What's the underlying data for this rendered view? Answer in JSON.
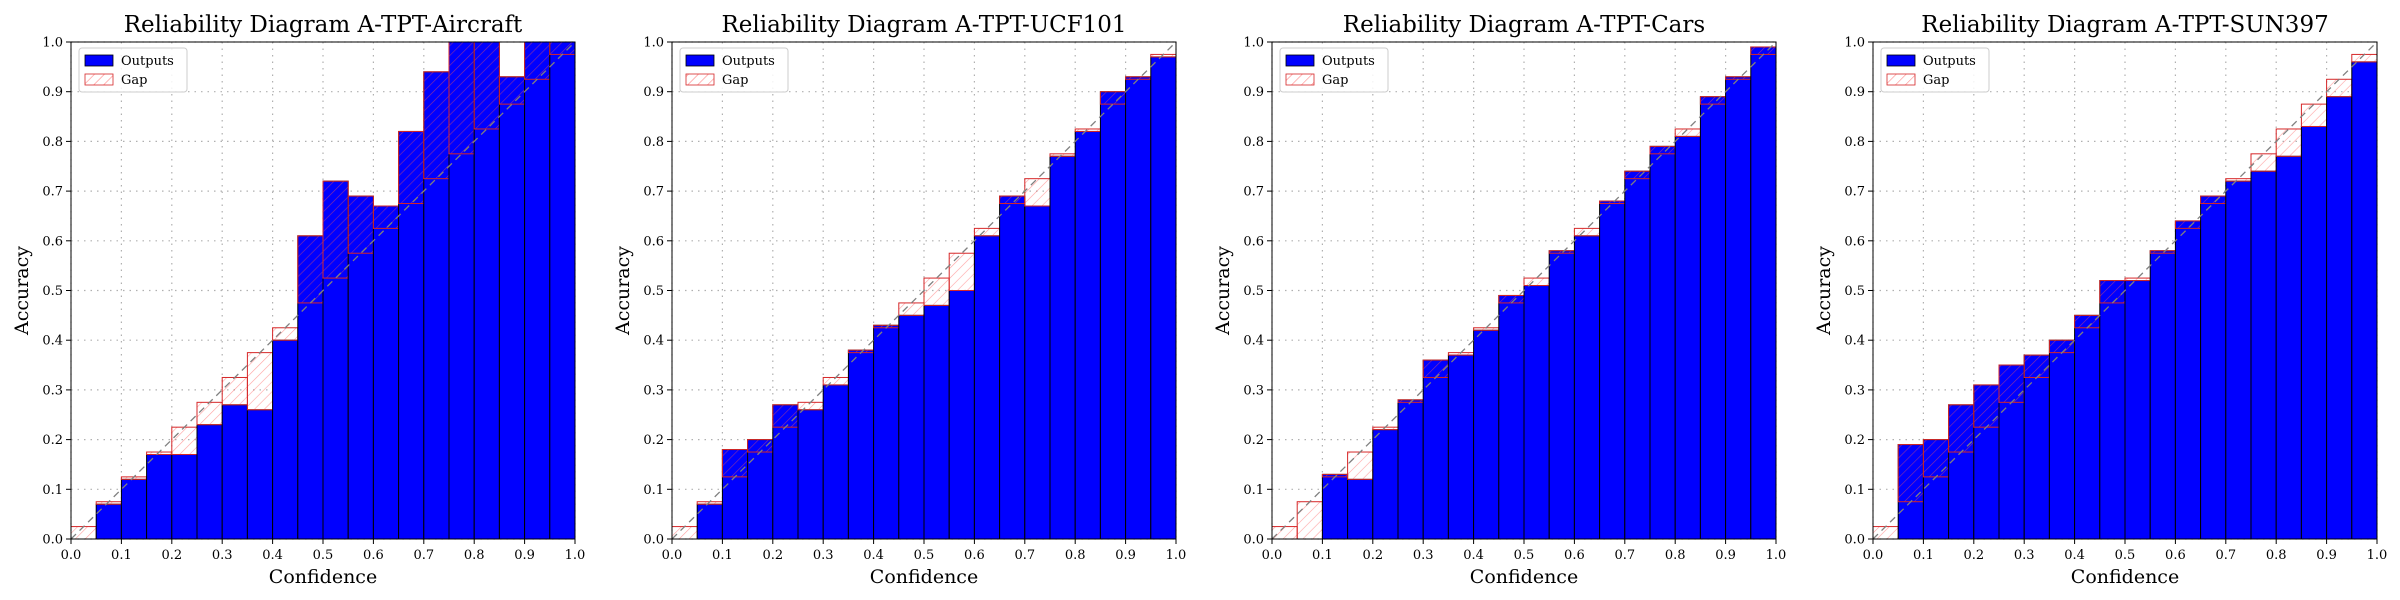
{
  "legend": {
    "outputs": "Outputs",
    "gap": "Gap"
  },
  "colors": {
    "outputs_fill": "#0000ff",
    "gap_hatch": "#ff5555",
    "bar_edge": "#000000",
    "gap_edge": "#d62728",
    "diagonal": "#808080",
    "grid": "#b0b0b0"
  },
  "chart_data": [
    {
      "type": "bar",
      "title": "Reliability Diagram A-TPT-Aircraft",
      "xlabel": "Confidence",
      "ylabel": "Accuracy",
      "xlim": [
        0,
        1
      ],
      "ylim": [
        0,
        1
      ],
      "xticks": [
        "0.0",
        "0.1",
        "0.2",
        "0.3",
        "0.4",
        "0.5",
        "0.6",
        "0.7",
        "0.8",
        "0.9",
        "1.0"
      ],
      "yticks": [
        "0.0",
        "0.1",
        "0.2",
        "0.3",
        "0.4",
        "0.5",
        "0.6",
        "0.7",
        "0.8",
        "0.9",
        "1.0"
      ],
      "bin_width": 0.05,
      "confidence": [
        0.025,
        0.075,
        0.125,
        0.175,
        0.225,
        0.275,
        0.325,
        0.375,
        0.425,
        0.475,
        0.525,
        0.575,
        0.625,
        0.675,
        0.725,
        0.775,
        0.825,
        0.875,
        0.925,
        0.975
      ],
      "accuracy": [
        0.0,
        0.07,
        0.12,
        0.17,
        0.17,
        0.23,
        0.27,
        0.26,
        0.4,
        0.61,
        0.72,
        0.69,
        0.67,
        0.82,
        0.94,
        1.0,
        1.0,
        0.93,
        1.0,
        1.0
      ],
      "legend_position": "top-left",
      "grid": true
    },
    {
      "type": "bar",
      "title": "Reliability Diagram A-TPT-UCF101",
      "xlabel": "Confidence",
      "ylabel": "Accuracy",
      "xlim": [
        0,
        1
      ],
      "ylim": [
        0,
        1
      ],
      "xticks": [
        "0.0",
        "0.1",
        "0.2",
        "0.3",
        "0.4",
        "0.5",
        "0.6",
        "0.7",
        "0.8",
        "0.9",
        "1.0"
      ],
      "yticks": [
        "0.0",
        "0.1",
        "0.2",
        "0.3",
        "0.4",
        "0.5",
        "0.6",
        "0.7",
        "0.8",
        "0.9",
        "1.0"
      ],
      "bin_width": 0.05,
      "confidence": [
        0.025,
        0.075,
        0.125,
        0.175,
        0.225,
        0.275,
        0.325,
        0.375,
        0.425,
        0.475,
        0.525,
        0.575,
        0.625,
        0.675,
        0.725,
        0.775,
        0.825,
        0.875,
        0.925,
        0.975
      ],
      "accuracy": [
        0.0,
        0.07,
        0.18,
        0.2,
        0.27,
        0.26,
        0.31,
        0.38,
        0.43,
        0.45,
        0.47,
        0.5,
        0.61,
        0.69,
        0.67,
        0.77,
        0.82,
        0.9,
        0.93,
        0.97
      ],
      "legend_position": "top-left",
      "grid": true
    },
    {
      "type": "bar",
      "title": "Reliability Diagram A-TPT-Cars",
      "xlabel": "Confidence",
      "ylabel": "Accuracy",
      "xlim": [
        0,
        1
      ],
      "ylim": [
        0,
        1
      ],
      "xticks": [
        "0.0",
        "0.1",
        "0.2",
        "0.3",
        "0.4",
        "0.5",
        "0.6",
        "0.7",
        "0.8",
        "0.9",
        "1.0"
      ],
      "yticks": [
        "0.0",
        "0.1",
        "0.2",
        "0.3",
        "0.4",
        "0.5",
        "0.6",
        "0.7",
        "0.8",
        "0.9",
        "1.0"
      ],
      "bin_width": 0.05,
      "confidence": [
        0.025,
        0.075,
        0.125,
        0.175,
        0.225,
        0.275,
        0.325,
        0.375,
        0.425,
        0.475,
        0.525,
        0.575,
        0.625,
        0.675,
        0.725,
        0.775,
        0.825,
        0.875,
        0.925,
        0.975
      ],
      "accuracy": [
        0.0,
        0.0,
        0.13,
        0.12,
        0.22,
        0.28,
        0.36,
        0.37,
        0.42,
        0.49,
        0.51,
        0.58,
        0.61,
        0.68,
        0.74,
        0.79,
        0.81,
        0.89,
        0.93,
        0.99
      ],
      "legend_position": "top-left",
      "grid": true
    },
    {
      "type": "bar",
      "title": "Reliability Diagram A-TPT-SUN397",
      "xlabel": "Confidence",
      "ylabel": "Accuracy",
      "xlim": [
        0,
        1
      ],
      "ylim": [
        0,
        1
      ],
      "xticks": [
        "0.0",
        "0.1",
        "0.2",
        "0.3",
        "0.4",
        "0.5",
        "0.6",
        "0.7",
        "0.8",
        "0.9",
        "1.0"
      ],
      "yticks": [
        "0.0",
        "0.1",
        "0.2",
        "0.3",
        "0.4",
        "0.5",
        "0.6",
        "0.7",
        "0.8",
        "0.9",
        "1.0"
      ],
      "bin_width": 0.05,
      "confidence": [
        0.025,
        0.075,
        0.125,
        0.175,
        0.225,
        0.275,
        0.325,
        0.375,
        0.425,
        0.475,
        0.525,
        0.575,
        0.625,
        0.675,
        0.725,
        0.775,
        0.825,
        0.875,
        0.925,
        0.975
      ],
      "accuracy": [
        0.0,
        0.19,
        0.2,
        0.27,
        0.31,
        0.35,
        0.37,
        0.4,
        0.45,
        0.52,
        0.52,
        0.58,
        0.64,
        0.69,
        0.72,
        0.74,
        0.77,
        0.83,
        0.89,
        0.96
      ],
      "legend_position": "top-left",
      "grid": true
    }
  ]
}
